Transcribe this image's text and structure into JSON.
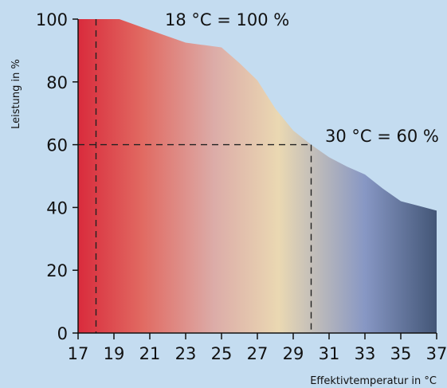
{
  "chart_data": {
    "type": "area",
    "title": "",
    "xlabel": "Effektivtemperatur in °C",
    "ylabel": "Leistung in %",
    "xlim": [
      17,
      37
    ],
    "ylim": [
      0,
      100
    ],
    "xticks": [
      "17",
      "19",
      "21",
      "23",
      "25",
      "27",
      "29",
      "31",
      "33",
      "35",
      "37"
    ],
    "yticks": [
      "0",
      "20",
      "40",
      "60",
      "80",
      "100"
    ],
    "series": [
      {
        "x": [
          17,
          19.3,
          21,
          23,
          25,
          26,
          27,
          28,
          29,
          30,
          31,
          32,
          33,
          34,
          35,
          36,
          37
        ],
        "y": [
          100,
          100,
          96.5,
          92.5,
          91,
          86,
          80.5,
          71.5,
          64.5,
          60,
          56,
          53,
          50.5,
          46,
          42,
          40.5,
          39
        ]
      }
    ],
    "reference_lines": [
      {
        "x": 18,
        "y": 100
      },
      {
        "x": 30,
        "y": 60
      }
    ],
    "annotations": [
      "18 °C = 100 %",
      "30 °C = 60 %"
    ],
    "gradient_colors": [
      "#d92b3c",
      "#e16a62",
      "#dcaca8",
      "#ead8b2",
      "#8797c4",
      "#435677"
    ],
    "grid": false
  }
}
